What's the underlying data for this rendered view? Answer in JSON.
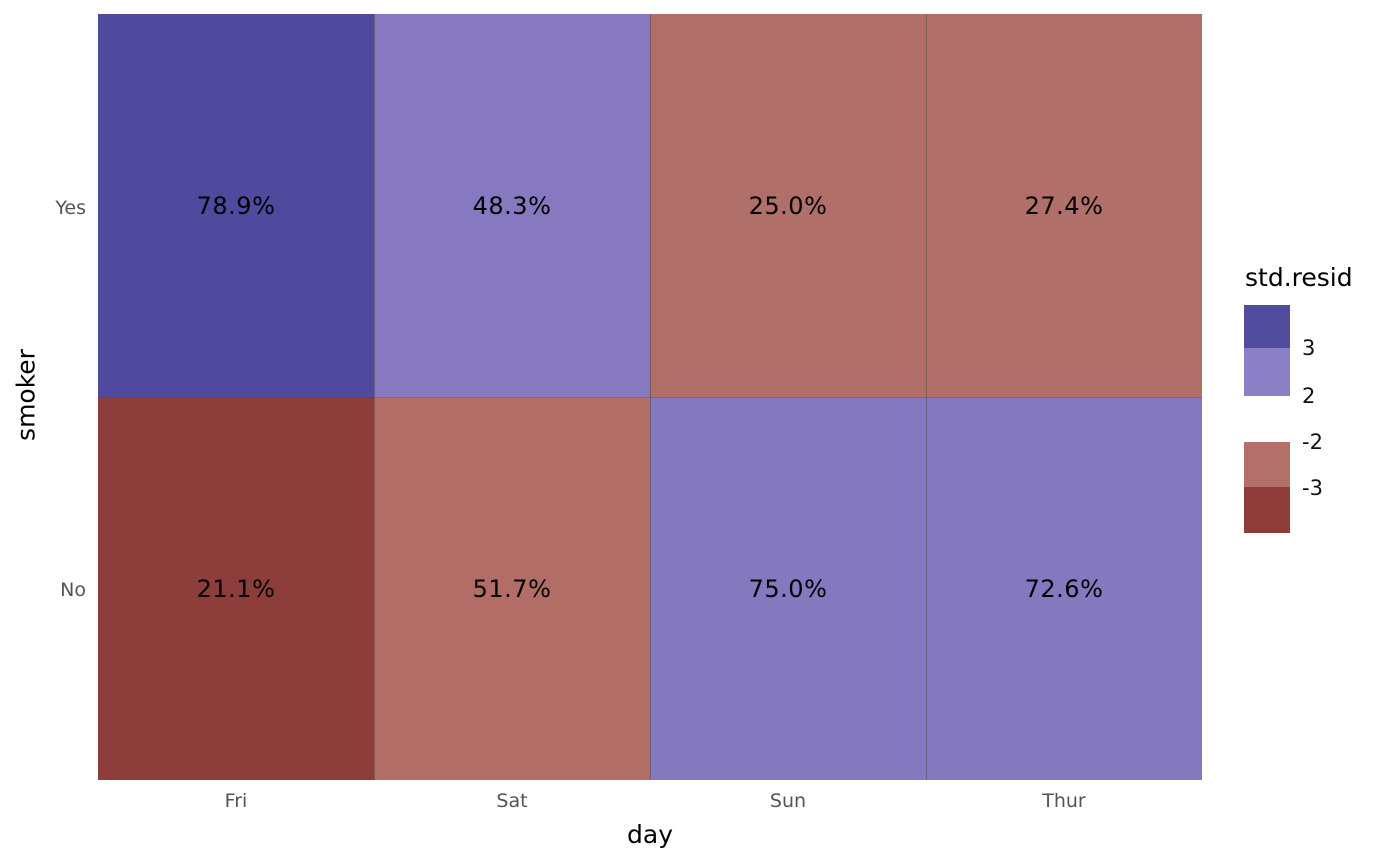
{
  "chart_data": {
    "type": "heatmap",
    "variant": "mosaic-residual-plot",
    "title": "",
    "xlabel": "day",
    "ylabel": "smoker",
    "x_categories": [
      "Fri",
      "Sat",
      "Sun",
      "Thur"
    ],
    "y_categories": [
      "Yes",
      "No"
    ],
    "values_unit": "percent of day total",
    "series": [
      {
        "name": "Yes",
        "values": [
          78.9,
          48.3,
          25.0,
          27.4
        ]
      },
      {
        "name": "No",
        "values": [
          21.1,
          51.7,
          75.0,
          72.6
        ]
      }
    ],
    "cells": [
      {
        "row": "Yes",
        "col": "Fri",
        "label": "78.9%",
        "value": 78.9,
        "color": "#4F4A9D"
      },
      {
        "row": "Yes",
        "col": "Sat",
        "label": "48.3%",
        "value": 48.3,
        "color": "#8679BF"
      },
      {
        "row": "Yes",
        "col": "Sun",
        "label": "25.0%",
        "value": 25.0,
        "color": "#B16F6A"
      },
      {
        "row": "Yes",
        "col": "Thur",
        "label": "27.4%",
        "value": 27.4,
        "color": "#B16F6A"
      },
      {
        "row": "No",
        "col": "Fri",
        "label": "21.1%",
        "value": 21.1,
        "color": "#8E3E3A"
      },
      {
        "row": "No",
        "col": "Sat",
        "label": "51.7%",
        "value": 51.7,
        "color": "#B26E66"
      },
      {
        "row": "No",
        "col": "Sun",
        "label": "75.0%",
        "value": 75.0,
        "color": "#8478BE"
      },
      {
        "row": "No",
        "col": "Thur",
        "label": "72.6%",
        "value": 72.6,
        "color": "#8478BE"
      }
    ],
    "legend": {
      "title": "std.resid",
      "position": "right",
      "breaks": [
        "3",
        "2",
        "-2",
        "-3"
      ],
      "swatch_colors": [
        "#504B9D",
        "#8B80C6",
        "#B3706A",
        "#8E3C39"
      ],
      "bins": [
        {
          "range": "> 3",
          "color": "#504B9D"
        },
        {
          "range": "2 to 3",
          "color": "#8B80C6"
        },
        {
          "range": "-3 to -2",
          "color": "#B3706A"
        },
        {
          "range": "< -3",
          "color": "#8E3C39"
        }
      ]
    },
    "layout": {
      "grid": "off",
      "panel_background": "#FFFFFF",
      "tick_label_color": "#545454",
      "axis_title_color": "#000000",
      "cell_label_color": "#000000"
    }
  }
}
